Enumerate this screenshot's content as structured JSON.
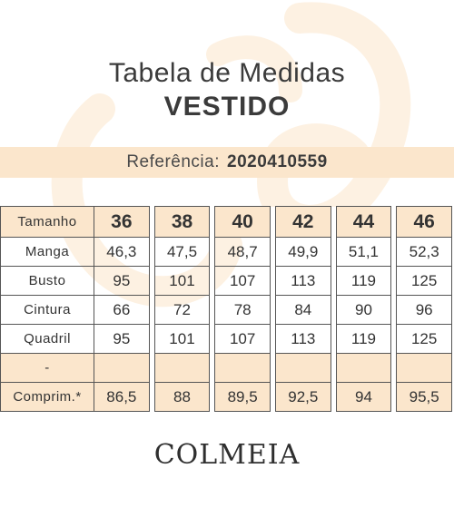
{
  "title": {
    "line1": "Tabela de Medidas",
    "line2": "VESTIDO"
  },
  "reference": {
    "label": "Referência:",
    "code": "2020410559"
  },
  "table": {
    "header_label": "Tamanho",
    "sizes": [
      "36",
      "38",
      "40",
      "42",
      "44",
      "46"
    ],
    "rows": [
      {
        "label": "Manga",
        "values": [
          "46,3",
          "47,5",
          "48,7",
          "49,9",
          "51,1",
          "52,3"
        ]
      },
      {
        "label": "Busto",
        "values": [
          "95",
          "101",
          "107",
          "113",
          "119",
          "125"
        ]
      },
      {
        "label": "Cintura",
        "values": [
          "66",
          "72",
          "78",
          "84",
          "90",
          "96"
        ]
      },
      {
        "label": "Quadril",
        "values": [
          "95",
          "101",
          "107",
          "113",
          "119",
          "125"
        ]
      },
      {
        "label": "-",
        "values": [
          "",
          "",
          "",
          "",
          "",
          ""
        ]
      },
      {
        "label": "Comprim.*",
        "values": [
          "86,5",
          "88",
          "89,5",
          "92,5",
          "94",
          "95,5"
        ]
      }
    ]
  },
  "brand": {
    "logo_text": "COLMEIA"
  },
  "colors": {
    "accent_band": "#fbe6cc",
    "watermark": "#fdf3e6",
    "text": "#3a3a3a"
  }
}
